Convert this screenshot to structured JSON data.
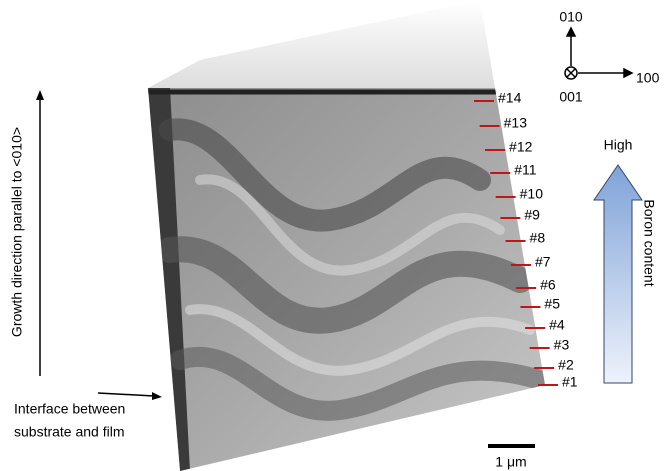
{
  "orientation": {
    "up": "010",
    "right": "100",
    "out": "001"
  },
  "growth_label": "Growth direction parallel to <010>",
  "interface_label": [
    "Interface between",
    "substrate and film"
  ],
  "scale_bar": "1 μm",
  "boron": {
    "high": "High",
    "label": "Boron content"
  },
  "markers": [
    "#1",
    "#2",
    "#3",
    "#4",
    "#5",
    "#6",
    "#7",
    "#8",
    "#9",
    "#10",
    "#11",
    "#12",
    "#13",
    "#14"
  ]
}
